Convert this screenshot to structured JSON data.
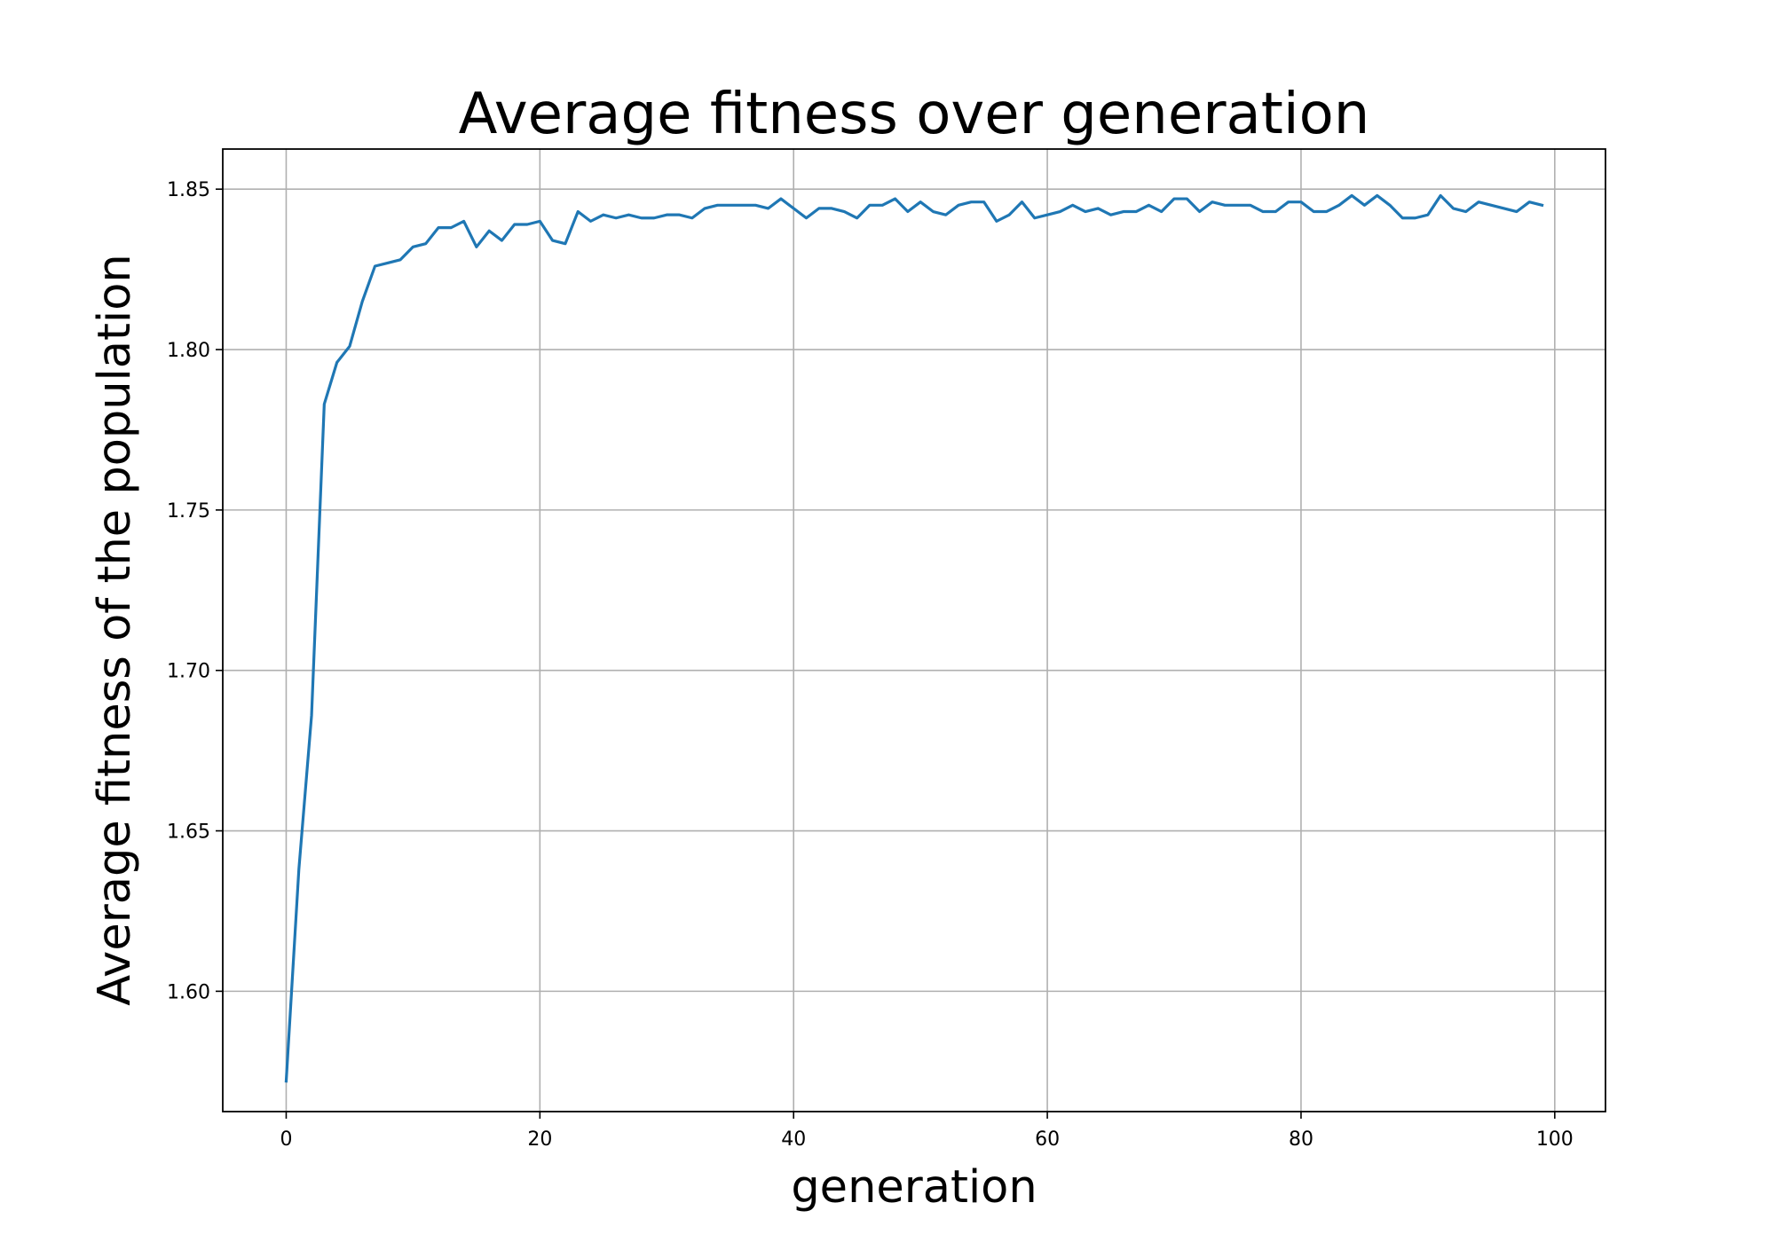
{
  "chart_data": {
    "type": "line",
    "title": "Average fitness over generation",
    "xlabel": "generation",
    "ylabel": "Average fitness of the population",
    "xlim": [
      -5,
      104
    ],
    "ylim": [
      1.5625,
      1.8625
    ],
    "xticks": [
      0,
      20,
      40,
      60,
      80,
      100
    ],
    "xtick_labels": [
      "0",
      "20",
      "40",
      "60",
      "80",
      "100"
    ],
    "yticks": [
      1.6,
      1.65,
      1.7,
      1.75,
      1.8,
      1.85
    ],
    "ytick_labels": [
      "1.60",
      "1.65",
      "1.70",
      "1.75",
      "1.80",
      "1.85"
    ],
    "grid": true,
    "legend": "none",
    "line_color": "#1f77b4",
    "grid_color": "#b0b0b0",
    "series": [
      {
        "x": [
          0,
          1,
          2,
          3,
          4,
          5,
          6,
          7,
          8,
          9,
          10,
          11,
          12,
          13,
          14,
          15,
          16,
          17,
          18,
          19,
          20,
          21,
          22,
          23,
          24,
          25,
          26,
          27,
          28,
          29,
          30,
          31,
          32,
          33,
          34,
          35,
          36,
          37,
          38,
          39,
          40,
          41,
          42,
          43,
          44,
          45,
          46,
          47,
          48,
          49,
          50,
          51,
          52,
          53,
          54,
          55,
          56,
          57,
          58,
          59,
          60,
          61,
          62,
          63,
          64,
          65,
          66,
          67,
          68,
          69,
          70,
          71,
          72,
          73,
          74,
          75,
          76,
          77,
          78,
          79,
          80,
          81,
          82,
          83,
          84,
          85,
          86,
          87,
          88,
          89,
          90,
          91,
          92,
          93,
          94,
          95,
          96,
          97,
          98,
          99
        ],
        "values": [
          1.572,
          1.638,
          1.686,
          1.783,
          1.796,
          1.801,
          1.815,
          1.826,
          1.827,
          1.828,
          1.832,
          1.833,
          1.838,
          1.838,
          1.84,
          1.832,
          1.837,
          1.834,
          1.839,
          1.839,
          1.84,
          1.834,
          1.833,
          1.843,
          1.84,
          1.842,
          1.841,
          1.842,
          1.841,
          1.841,
          1.842,
          1.842,
          1.841,
          1.844,
          1.845,
          1.845,
          1.845,
          1.845,
          1.844,
          1.847,
          1.844,
          1.841,
          1.844,
          1.844,
          1.843,
          1.841,
          1.845,
          1.845,
          1.847,
          1.843,
          1.846,
          1.843,
          1.842,
          1.845,
          1.846,
          1.846,
          1.84,
          1.842,
          1.846,
          1.841,
          1.842,
          1.843,
          1.845,
          1.843,
          1.844,
          1.842,
          1.843,
          1.843,
          1.845,
          1.843,
          1.847,
          1.847,
          1.843,
          1.846,
          1.845,
          1.845,
          1.845,
          1.843,
          1.843,
          1.846,
          1.846,
          1.843,
          1.843,
          1.845,
          1.848,
          1.845,
          1.848,
          1.845,
          1.841,
          1.841,
          1.842,
          1.848,
          1.844,
          1.843,
          1.846,
          1.845,
          1.844,
          1.843,
          1.846,
          1.845
        ]
      }
    ]
  }
}
